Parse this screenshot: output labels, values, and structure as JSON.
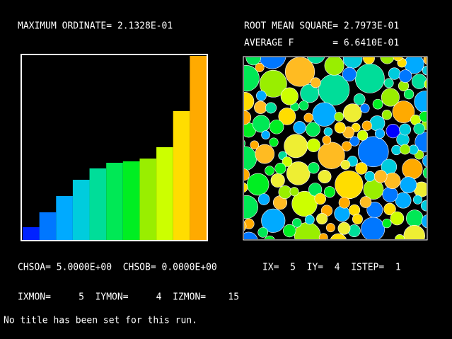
{
  "header": {
    "max_ordinate": "MAXIMUM ORDINATE= 2.1328E-01",
    "rms": "ROOT MEAN SQUARE= 2.7973E-01",
    "average": "AVERAGE F       = 6.6410E-01"
  },
  "chart_data": {
    "type": "bar",
    "values": [
      0.0148,
      0.032,
      0.0509,
      0.0697,
      0.0829,
      0.0894,
      0.0911,
      0.0943,
      0.1075,
      0.1493,
      0.21328
    ],
    "colors": [
      "#0022ff",
      "#0077ff",
      "#00aaff",
      "#00ccdd",
      "#00dd99",
      "#00e855",
      "#00ee22",
      "#99ee00",
      "#ccff00",
      "#ffdd00",
      "#ffaa00"
    ],
    "ylim": [
      0,
      0.21328
    ]
  },
  "status": {
    "chso": "CHSOA= 5.0000E+00  CHSOB= 0.0000E+00",
    "step": "IX=  5  IY=  4  ISTEP=  1",
    "monitor": "IXMON=     5  IYMON=     4  IZMON=    15",
    "run_title": "No title has been set for this run."
  }
}
